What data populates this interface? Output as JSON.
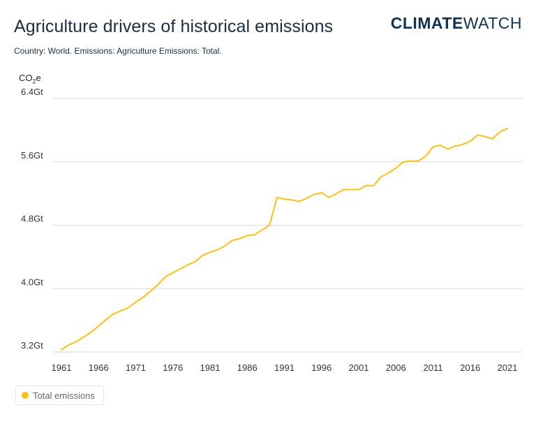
{
  "header": {
    "title": "Agriculture drivers of historical emissions",
    "logo_bold": "CLIMATE",
    "logo_light": "WATCH",
    "subtitle": "Country: World. Emissions: Agriculture Emissions: Total."
  },
  "unit": {
    "main": "CO",
    "sub": "2",
    "suffix": "e"
  },
  "colors": {
    "series": "#ffc10e",
    "grid": "#d7dadd",
    "axis_text": "#333333"
  },
  "chart_data": {
    "type": "line",
    "title": "Agriculture drivers of historical emissions",
    "ylabel": "CO2e",
    "ylim": [
      3.2,
      6.4
    ],
    "yticks": [
      3.2,
      4.0,
      4.8,
      5.6,
      6.4
    ],
    "ytick_labels": [
      "3.2Gt",
      "4.0Gt",
      "4.8Gt",
      "5.6Gt",
      "6.4Gt"
    ],
    "xticks": [
      1961,
      1966,
      1971,
      1976,
      1981,
      1986,
      1991,
      1996,
      2001,
      2006,
      2011,
      2016,
      2021
    ],
    "grid": true,
    "legend_position": "bottom-left",
    "series": [
      {
        "name": "Total emissions",
        "color": "#ffc10e",
        "x": [
          1961,
          1962,
          1963,
          1964,
          1965,
          1966,
          1967,
          1968,
          1969,
          1970,
          1971,
          1972,
          1973,
          1974,
          1975,
          1976,
          1977,
          1978,
          1979,
          1980,
          1981,
          1982,
          1983,
          1984,
          1985,
          1986,
          1987,
          1988,
          1989,
          1990,
          1991,
          1992,
          1993,
          1994,
          1995,
          1996,
          1997,
          1998,
          1999,
          2000,
          2001,
          2002,
          2003,
          2004,
          2005,
          2006,
          2007,
          2008,
          2009,
          2010,
          2011,
          2012,
          2013,
          2014,
          2015,
          2016,
          2017,
          2018,
          2019,
          2020,
          2021
        ],
        "values": [
          3.23,
          3.29,
          3.33,
          3.39,
          3.45,
          3.53,
          3.61,
          3.68,
          3.72,
          3.76,
          3.83,
          3.89,
          3.97,
          4.05,
          4.15,
          4.2,
          4.25,
          4.3,
          4.34,
          4.42,
          4.46,
          4.49,
          4.54,
          4.61,
          4.63,
          4.67,
          4.68,
          4.74,
          4.8,
          5.15,
          5.13,
          5.12,
          5.1,
          5.14,
          5.19,
          5.21,
          5.15,
          5.2,
          5.25,
          5.25,
          5.25,
          5.3,
          5.3,
          5.41,
          5.46,
          5.52,
          5.6,
          5.61,
          5.61,
          5.67,
          5.79,
          5.81,
          5.76,
          5.8,
          5.82,
          5.86,
          5.94,
          5.92,
          5.89,
          5.98,
          6.02
        ]
      }
    ]
  }
}
